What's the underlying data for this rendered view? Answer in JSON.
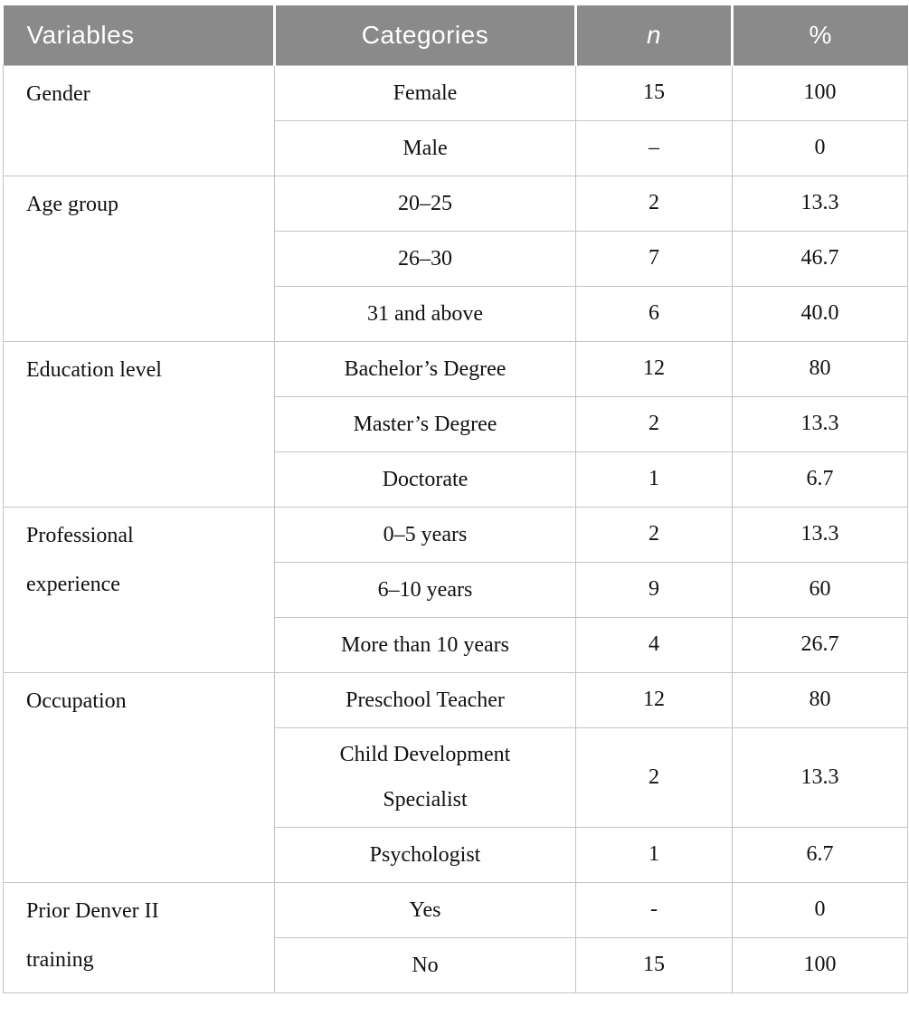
{
  "table": {
    "columns": [
      "Variables",
      "Categories",
      "n",
      "%"
    ],
    "groups": [
      {
        "variable": "Gender",
        "rows": [
          {
            "category": "Female",
            "n": "15",
            "pct": "100"
          },
          {
            "category": "Male",
            "n": "–",
            "pct": "0"
          }
        ]
      },
      {
        "variable": "Age group",
        "rows": [
          {
            "category": "20–25",
            "n": "2",
            "pct": "13.3"
          },
          {
            "category": "26–30",
            "n": "7",
            "pct": "46.7"
          },
          {
            "category": "31 and above",
            "n": "6",
            "pct": "40.0"
          }
        ]
      },
      {
        "variable": "Education level",
        "rows": [
          {
            "category": "Bachelor’s Degree",
            "n": "12",
            "pct": "80"
          },
          {
            "category": "Master’s Degree",
            "n": "2",
            "pct": "13.3"
          },
          {
            "category": "Doctorate",
            "n": "1",
            "pct": "6.7"
          }
        ]
      },
      {
        "variable": "Professional experience",
        "rows": [
          {
            "category": "0–5 years",
            "n": "2",
            "pct": "13.3"
          },
          {
            "category": "6–10 years",
            "n": "9",
            "pct": "60"
          },
          {
            "category": "More than 10 years",
            "n": "4",
            "pct": "26.7"
          }
        ]
      },
      {
        "variable": "Occupation",
        "rows": [
          {
            "category": "Preschool Teacher",
            "n": "12",
            "pct": "80"
          },
          {
            "category": "Child Development Specialist",
            "n": "2",
            "pct": "13.3"
          },
          {
            "category": "Psychologist",
            "n": "1",
            "pct": "6.7"
          }
        ]
      },
      {
        "variable": "Prior Denver II training",
        "rows": [
          {
            "category": "Yes",
            "n": "-",
            "pct": "0"
          },
          {
            "category": "No",
            "n": "15",
            "pct": "100"
          }
        ]
      }
    ],
    "colors": {
      "header_bg": "#8a8a8a",
      "header_text": "#ffffff",
      "border": "#c4c4c4",
      "body_text": "#111111"
    }
  }
}
